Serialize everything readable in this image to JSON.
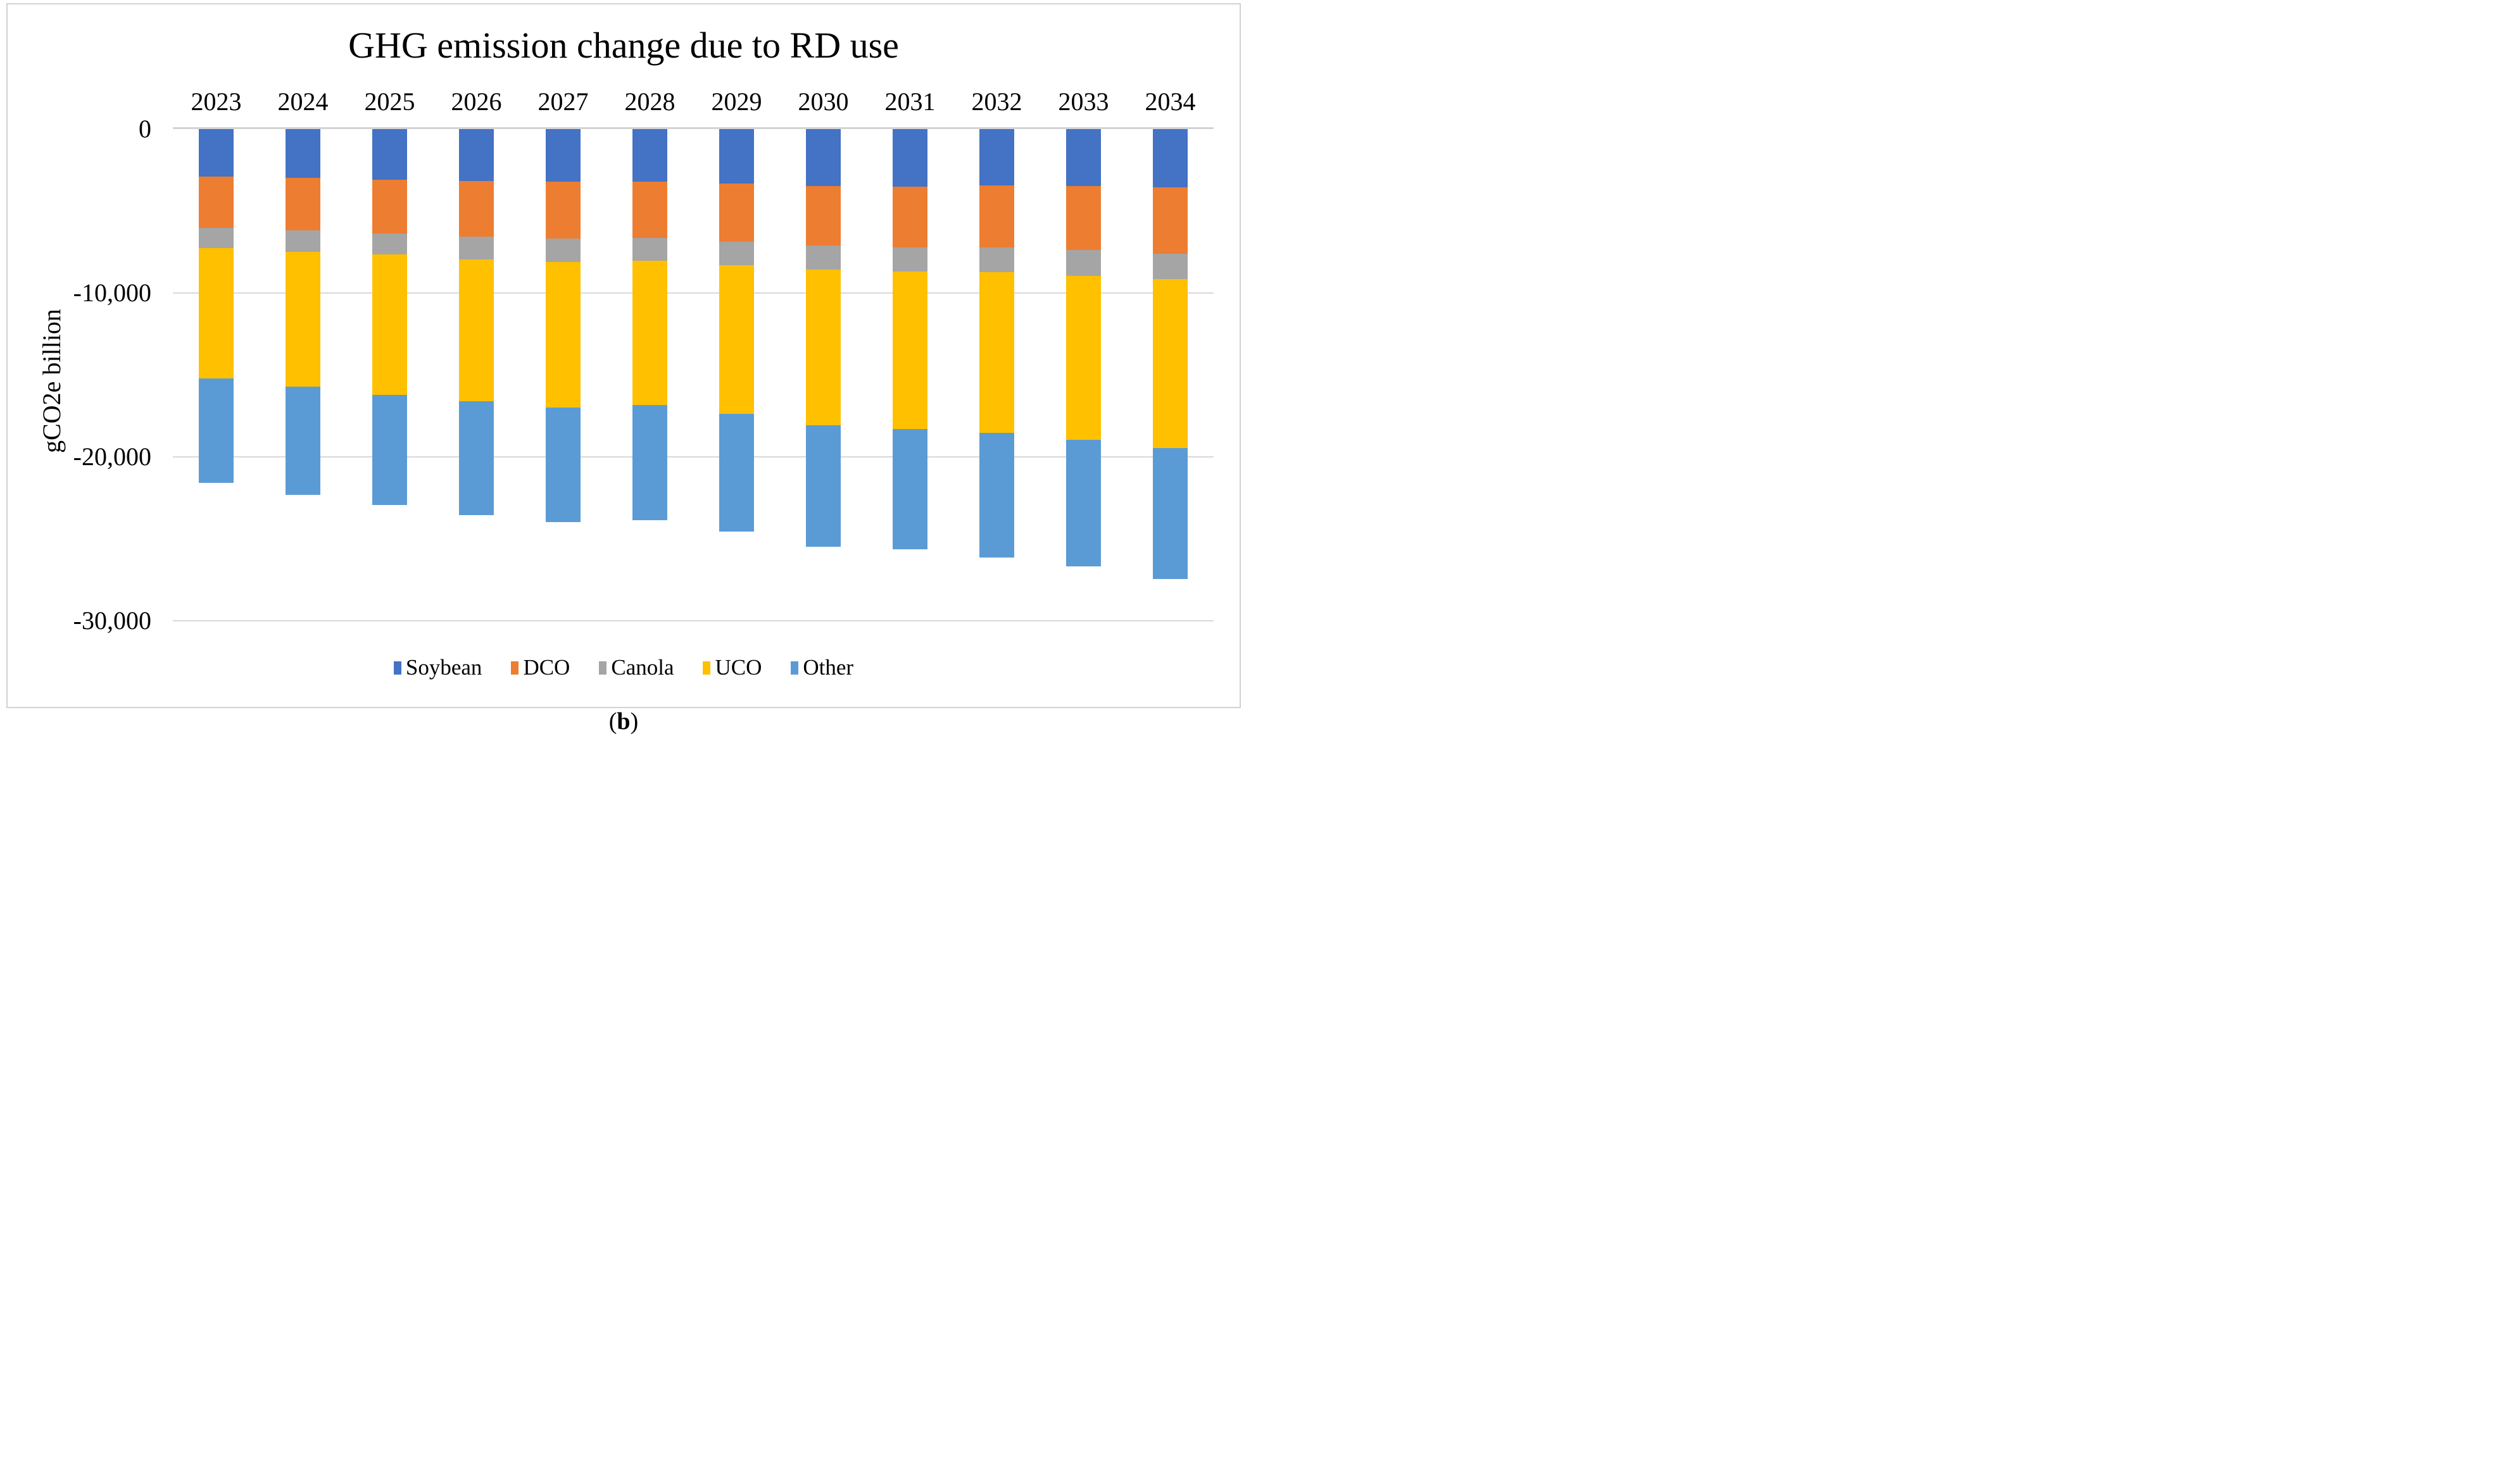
{
  "figure": {
    "caption": {
      "open": "(",
      "bold": "b",
      "close": ")"
    },
    "colors": {
      "soybean_blue": "#4472C4",
      "dco_orange": "#ED7D31",
      "canola_gray": "#A5A5A5",
      "uco_yellow": "#FFC000",
      "other_light_blue": "#5B9BD5",
      "gridline": "#D9D9D9",
      "zero_axis_line": "#D3D3D3",
      "figure_border": "#D2D2D2",
      "text": "#000000"
    }
  },
  "chart_data": {
    "type": "bar",
    "stacked": true,
    "orientation": "vertical",
    "title": "GHG emission change due to RD use",
    "xlabel": "",
    "ylabel": "gCO2e billion",
    "ylim": [
      -30000,
      0
    ],
    "yticks": [
      0,
      -10000,
      -20000,
      -30000
    ],
    "ytick_labels": [
      "0",
      "-10,000",
      "-20,000",
      "-30,000"
    ],
    "grid": true,
    "legend_position": "bottom",
    "categories": [
      "2023",
      "2024",
      "2025",
      "2026",
      "2027",
      "2028",
      "2029",
      "2030",
      "2031",
      "2032",
      "2033",
      "2034"
    ],
    "series": [
      {
        "name": "Soybean",
        "color": "#4472C4",
        "values": [
          -2890,
          -2970,
          -3070,
          -3160,
          -3220,
          -3200,
          -3320,
          -3460,
          -3500,
          -3450,
          -3490,
          -3550
        ]
      },
      {
        "name": "DCO",
        "color": "#ED7D31",
        "values": [
          -3150,
          -3220,
          -3320,
          -3420,
          -3460,
          -3440,
          -3560,
          -3650,
          -3710,
          -3780,
          -3900,
          -4040
        ]
      },
      {
        "name": "Canola",
        "color": "#A5A5A5",
        "values": [
          -1230,
          -1310,
          -1270,
          -1370,
          -1410,
          -1410,
          -1410,
          -1470,
          -1480,
          -1480,
          -1580,
          -1580
        ]
      },
      {
        "name": "UCO",
        "color": "#FFC000",
        "values": [
          -7930,
          -8220,
          -8560,
          -8650,
          -8910,
          -8790,
          -9100,
          -9490,
          -9610,
          -9810,
          -9990,
          -10290
        ]
      },
      {
        "name": "Other",
        "color": "#5B9BD5",
        "values": [
          -6370,
          -6600,
          -6720,
          -6970,
          -6970,
          -7030,
          -7170,
          -7400,
          -7320,
          -7630,
          -7740,
          -8000
        ]
      }
    ]
  }
}
